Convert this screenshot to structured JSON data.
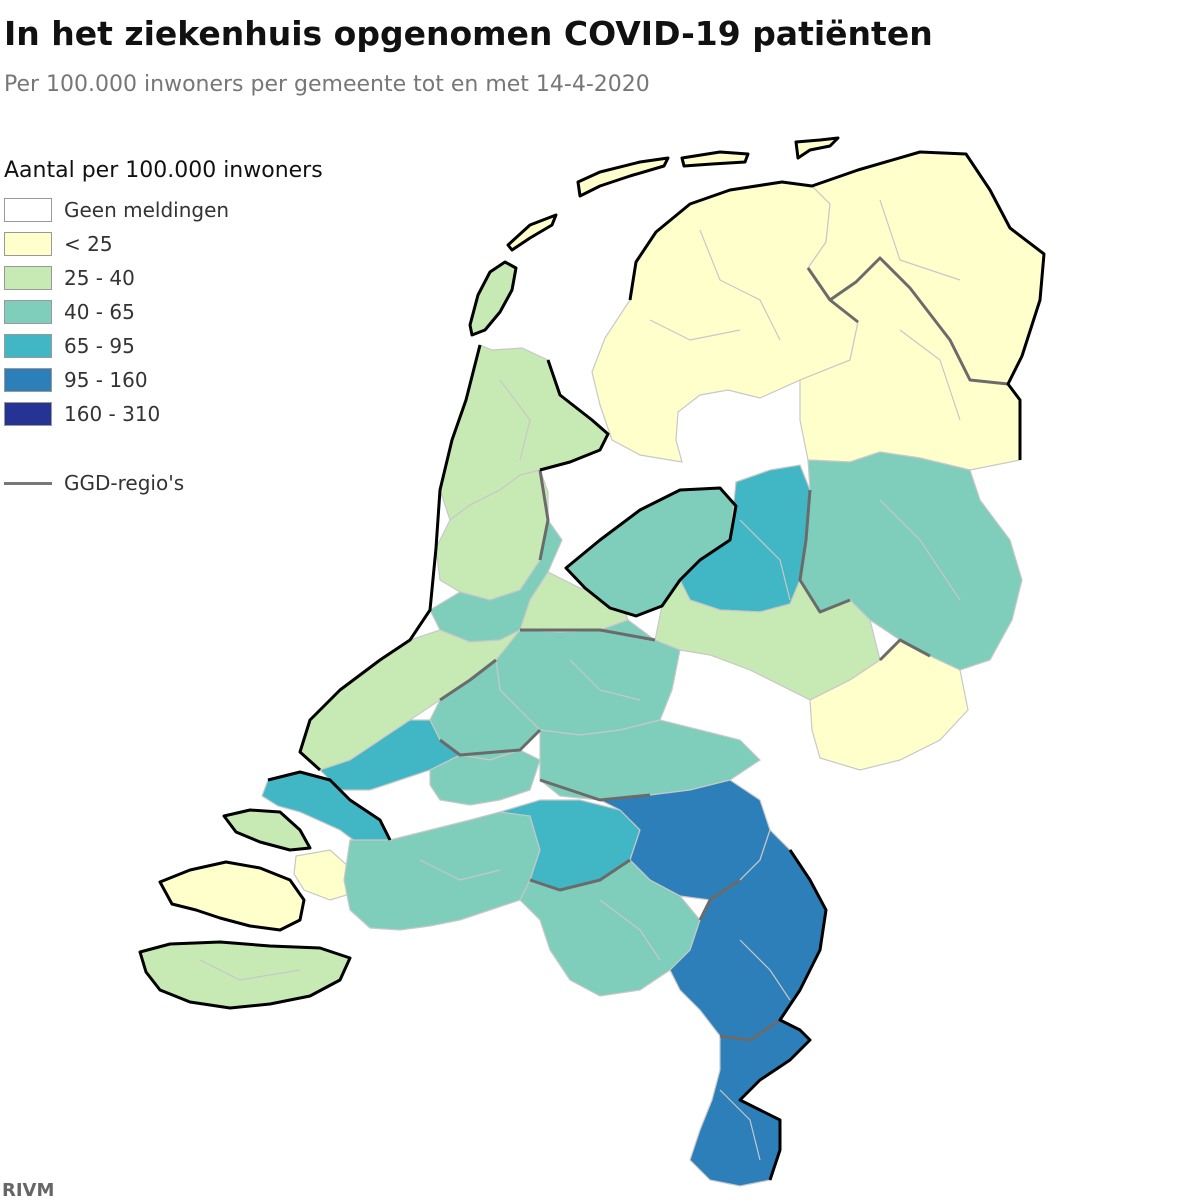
{
  "title": "In het ziekenhuis opgenomen COVID-19 patiënten",
  "subtitle": "Per 100.000 inwoners per gemeente tot en met 14-4-2020",
  "legend": {
    "title": "Aantal per 100.000 inwoners",
    "classes": [
      {
        "label": "Geen meldingen",
        "color": "#ffffff"
      },
      {
        "label": "< 25",
        "color": "#ffffcc"
      },
      {
        "label": "25 - 40",
        "color": "#c7e9b4"
      },
      {
        "label": "40 - 65",
        "color": "#7fcdbb"
      },
      {
        "label": "65 - 95",
        "color": "#41b6c4"
      },
      {
        "label": "95 - 160",
        "color": "#2c7fb8"
      },
      {
        "label": "160 - 310",
        "color": "#253494"
      }
    ],
    "boundary_label": "GGD-regio's",
    "boundary_color": "#6b6b6b"
  },
  "source": "RIVM",
  "regions": [
    {
      "name": "wadden-texel",
      "class": 2
    },
    {
      "name": "wadden-vlieland",
      "class": 1
    },
    {
      "name": "wadden-terschelling",
      "class": 1
    },
    {
      "name": "wadden-ameland",
      "class": 1
    },
    {
      "name": "wadden-schiermonnikoog",
      "class": 1
    },
    {
      "name": "friesland",
      "class": 1
    },
    {
      "name": "groningen",
      "class": 1
    },
    {
      "name": "drenthe",
      "class": 1
    },
    {
      "name": "noord-holland-noord",
      "class": 2
    },
    {
      "name": "noord-holland-zuid",
      "class": 3
    },
    {
      "name": "zaanstreek",
      "class": 2
    },
    {
      "name": "flevoland",
      "class": 3
    },
    {
      "name": "overijssel-noord",
      "class": 4
    },
    {
      "name": "twente",
      "class": 3
    },
    {
      "name": "gelderland-noord-oost",
      "class": 2
    },
    {
      "name": "achterhoek",
      "class": 1
    },
    {
      "name": "utrecht",
      "class": 3
    },
    {
      "name": "gooi-vechtstreek",
      "class": 2
    },
    {
      "name": "zuid-holland-west",
      "class": 2
    },
    {
      "name": "hollands-midden",
      "class": 3
    },
    {
      "name": "rotterdam-rijnmond",
      "class": 4
    },
    {
      "name": "zuid-holland-zuid",
      "class": 3
    },
    {
      "name": "gelderland-zuid",
      "class": 3
    },
    {
      "name": "walcheren",
      "class": 2
    },
    {
      "name": "zeeuws-vlaanderen",
      "class": 2
    },
    {
      "name": "schouwen-duiveland",
      "class": 4
    },
    {
      "name": "tholen",
      "class": 1
    },
    {
      "name": "zuid-beveland",
      "class": 1
    },
    {
      "name": "west-brabant",
      "class": 3
    },
    {
      "name": "midden-brabant",
      "class": 4
    },
    {
      "name": "brabant-noordoost",
      "class": 5
    },
    {
      "name": "brabant-zuidoost",
      "class": 3
    },
    {
      "name": "noord-limburg",
      "class": 5
    },
    {
      "name": "zuid-limburg",
      "class": 5
    }
  ]
}
